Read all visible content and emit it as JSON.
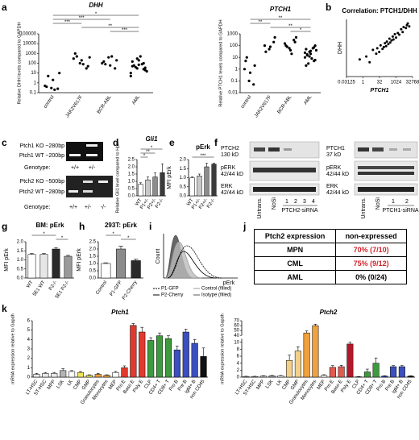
{
  "panel_letters": [
    "a",
    "b",
    "c",
    "d",
    "e",
    "f",
    "g",
    "h",
    "i",
    "j",
    "k"
  ],
  "chart_data": [
    {
      "type": "strip",
      "title": "DHH",
      "y_label": "Relative DHH levels compared to GAPDH",
      "categories": [
        "control",
        "JAK2V617F",
        "BCR-ABL",
        "AML"
      ],
      "values": [
        [
          0.5,
          0.3,
          0.25,
          0.4,
          2,
          10,
          5,
          0.2
        ],
        [
          300,
          100,
          30,
          1000,
          200,
          50,
          500,
          80,
          400
        ],
        [
          100,
          400,
          30,
          150,
          60,
          200,
          80,
          500
        ],
        [
          10,
          30,
          100,
          50,
          200,
          20,
          60,
          500,
          15,
          40,
          80,
          5,
          300,
          25,
          150,
          70,
          35
        ]
      ],
      "yscale": "log",
      "ylim": [
        0.1,
        100000
      ],
      "yticks": [
        0.1,
        1,
        10,
        100,
        1000,
        10000,
        100000
      ],
      "annotations": [
        "*",
        "***",
        "***",
        "**",
        "***"
      ],
      "color": "#000000"
    },
    {
      "type": "strip",
      "title": "PTCH1",
      "y_label": "Relative PTCH1 levels compared to GAPDH",
      "categories": [
        "control",
        "JAK2V617F",
        "BCR-ABL",
        "AML"
      ],
      "values": [
        [
          1,
          0.1,
          0.05,
          5,
          0.5,
          2,
          10
        ],
        [
          100,
          50,
          200,
          30,
          80,
          500
        ],
        [
          150,
          60,
          300,
          100,
          40,
          200,
          80,
          20,
          500
        ],
        [
          10,
          30,
          5,
          50,
          20,
          100,
          15,
          8,
          40,
          3,
          60,
          25,
          12,
          70,
          2,
          35,
          6,
          18
        ]
      ],
      "yscale": "log",
      "ylim": [
        0.01,
        1000
      ],
      "yticks": [
        0.01,
        0.1,
        1,
        10,
        100,
        1000
      ],
      "annotations": [
        "**",
        "**",
        "**",
        "*"
      ],
      "color": "#000000"
    },
    {
      "type": "scatter",
      "title": "Correlation: PTCH1/DHH",
      "x_label": "PTCH1",
      "y_label": "DHH",
      "x": [
        0.5,
        2,
        4,
        8,
        16,
        20,
        30,
        40,
        60,
        80,
        100,
        128,
        150,
        200,
        256,
        300,
        400,
        512,
        600,
        800,
        1024,
        1500,
        2048,
        3000,
        4096,
        5000,
        8192,
        10000,
        16384,
        12000
      ],
      "y": [
        2,
        4,
        1,
        20,
        8,
        30,
        12,
        60,
        25,
        40,
        100,
        50,
        150,
        80,
        300,
        120,
        200,
        500,
        250,
        900,
        400,
        1200,
        800,
        3000,
        1500,
        5000,
        4000,
        8000,
        6000,
        12000
      ],
      "xscale": "log2",
      "yscale": "log2",
      "xlim": [
        0.03125,
        32768
      ],
      "ylim": [
        0.03125,
        32768
      ],
      "xticks": [
        0.03125,
        1,
        32,
        1024,
        32768
      ],
      "color": "#000000"
    },
    {
      "type": "bar",
      "title": "Gli1",
      "y_label": "Relative Gli1 level compared to Hprt",
      "categories": [
        "WT",
        "P1+/-",
        "P2+/-",
        "P2-/-"
      ],
      "values": [
        0.8,
        1.1,
        1.3,
        1.6
      ],
      "errors": [
        0.1,
        0.2,
        0.3,
        0.6
      ],
      "colors": [
        "#ffffff",
        "#c8c8c8",
        "#8c8c8c",
        "#3a3a3a"
      ],
      "ylim": [
        0,
        2.5
      ],
      "yticks": [
        {
          "value": 0,
          "label": "0.0"
        },
        {
          "value": 0.5,
          "label": "0.5"
        },
        {
          "value": 1,
          "label": "1.0"
        },
        {
          "value": 1.5,
          "label": "1.5"
        },
        {
          "value": 2,
          "label": "2.0"
        },
        {
          "value": 2.5,
          "label": "2.5"
        }
      ],
      "annotations": [
        "*",
        "**",
        "*"
      ]
    },
    {
      "type": "bar",
      "title": "pErk",
      "y_label": "MFI pErk",
      "categories": [
        "WT",
        "P1+/-",
        "P2+/-",
        "P2-/-"
      ],
      "values": [
        1.0,
        1.1,
        1.6,
        1.75
      ],
      "errors": [
        0.05,
        0.1,
        0.2,
        0.05
      ],
      "colors": [
        "#ffffff",
        "#c8c8c8",
        "#8c8c8c",
        "#3a3a3a"
      ],
      "ylim": [
        0,
        2
      ],
      "yticks": [
        {
          "value": 0,
          "label": "0.0"
        },
        {
          "value": 0.5,
          "label": "0.5"
        },
        {
          "value": 1,
          "label": "1.0"
        },
        {
          "value": 1.5,
          "label": "1.5"
        },
        {
          "value": 2,
          "label": "2.0"
        }
      ],
      "annotations": [
        "***"
      ]
    },
    {
      "type": "bar",
      "title": "BM: pErk",
      "y_label": "MFI pErk",
      "categories": [
        "WT",
        "5E1 WT",
        "P2-/-",
        "5E1 P2-/-"
      ],
      "values": [
        1.3,
        1.3,
        1.6,
        1.2
      ],
      "errors": [
        0.05,
        0.05,
        0.08,
        0.05
      ],
      "colors": [
        "#ffffff",
        "#e6e6e6",
        "#2a2a2a",
        "#9a9a9a"
      ],
      "ylim": [
        0,
        2
      ],
      "yticks": [
        {
          "value": 0,
          "label": "0.0"
        },
        {
          "value": 0.5,
          "label": "0.5"
        },
        {
          "value": 1,
          "label": "1.0"
        },
        {
          "value": 1.5,
          "label": "1.5"
        },
        {
          "value": 2,
          "label": "2.0"
        }
      ],
      "annotations": [
        "*",
        "*"
      ]
    },
    {
      "type": "bar",
      "title": "293T: pErk",
      "y_label": "MFI pErk",
      "categories": [
        "Control",
        "P1-GFP",
        "P2-Cherry"
      ],
      "values": [
        1.0,
        2.0,
        1.2
      ],
      "errors": [
        0.05,
        0.2,
        0.1
      ],
      "colors": [
        "#ffffff",
        "#8c8c8c",
        "#2a2a2a"
      ],
      "ylim": [
        0,
        2.5
      ],
      "yticks": [
        {
          "value": 0,
          "label": "0.0"
        },
        {
          "value": 0.5,
          "label": "0.5"
        },
        {
          "value": 1,
          "label": "1.0"
        },
        {
          "value": 1.5,
          "label": "1.5"
        },
        {
          "value": 2,
          "label": "2.0"
        },
        {
          "value": 2.5,
          "label": "2.5"
        }
      ],
      "annotations": [
        "*",
        "*"
      ]
    },
    {
      "type": "bar",
      "title": "Ptch1",
      "y_label": "mRNA expression relative to Gapdh",
      "categories": [
        "LT-HSC",
        "ST-HSC",
        "MPP",
        "LSK",
        "LK",
        "CMP",
        "GMP",
        "Granulocytes",
        "Monocytes",
        "MEP",
        "Pro E",
        "Baso E",
        "Poly E",
        "CLP",
        "CD4+ T",
        "CD8+ T",
        "Pro B",
        "Pre B",
        "IgM+ B",
        "non CD45"
      ],
      "values": [
        0.3,
        0.4,
        0.4,
        0.7,
        0.6,
        0.5,
        0.2,
        0.3,
        0.2,
        0.5,
        1.0,
        5.5,
        4.8,
        3.9,
        4.4,
        4.1,
        2.9,
        4.8,
        3.6,
        2.2
      ],
      "errors": [
        0.1,
        0.1,
        0.1,
        0.2,
        0.1,
        0.1,
        0.05,
        0.1,
        0.05,
        0.1,
        0.2,
        0.2,
        0.5,
        0.3,
        0.3,
        0.3,
        0.4,
        0.3,
        0.4,
        0.9
      ],
      "colors": [
        "#e8e8e8",
        "#e8e8e8",
        "#e8e8e8",
        "#b4b4b4",
        "#ffffff",
        "#f2e35c",
        "#f2e35c",
        "#f0a03c",
        "#f0a03c",
        "#ffffff",
        "#e03a2e",
        "#e03a2e",
        "#e03a2e",
        "#3d9b3d",
        "#3d9b3d",
        "#3d9b3d",
        "#3b4fbf",
        "#3b4fbf",
        "#3b4fbf",
        "#111111"
      ],
      "ylim": [
        0,
        6
      ],
      "yticks": [
        0,
        1,
        2,
        3,
        4,
        5,
        6
      ]
    },
    {
      "type": "bar",
      "title": "Ptch2",
      "y_label": "mRNA expression relative to Gapdh",
      "categories": [
        "LT-HSC",
        "ST-HSC",
        "MPP",
        "LSK",
        "LK",
        "CMP",
        "GMP",
        "Granulocytes",
        "Monocytes",
        "MEP",
        "Pro E",
        "Baso E",
        "Poly E",
        "CLP",
        "CD4+ T",
        "CD8+ T",
        "Pro B",
        "Pre B",
        "IgM+ B",
        "non CD45"
      ],
      "values": [
        0.2,
        0.2,
        0.3,
        0.4,
        0.4,
        4.8,
        7.5,
        45,
        60,
        0.5,
        2.8,
        3,
        9.5,
        0.1,
        1.5,
        4,
        0.3,
        3,
        3,
        0.3
      ],
      "errors": [
        0.05,
        0.05,
        0.1,
        0.1,
        0.1,
        1.5,
        1.2,
        4,
        3,
        0.2,
        0.5,
        0.4,
        0.5,
        0.05,
        0.8,
        1.5,
        0.1,
        0.3,
        0.3,
        0.1
      ],
      "colors": [
        "#e8e8e8",
        "#e8e8e8",
        "#e8e8e8",
        "#b4b4b4",
        "#ffffff",
        "#f2d08a",
        "#f2d08a",
        "#f0a03c",
        "#f0a03c",
        "#ffffff",
        "#e05a50",
        "#e05a50",
        "#b3182a",
        "#3d9b3d",
        "#3d9b3d",
        "#3d9b3d",
        "#3b4fbf",
        "#3b4fbf",
        "#3b4fbf",
        "#111111"
      ],
      "ylim": [
        0,
        70
      ],
      "ybreak": [
        11,
        40
      ],
      "yticks": [
        0,
        2,
        4,
        6,
        8,
        10,
        40,
        50,
        60,
        70
      ]
    }
  ],
  "gels": [
    {
      "bands": [
        "Ptch1 KO ~280bp",
        "Ptch1 WT ~200bp"
      ],
      "genotype_label": "Genotype:",
      "genotypes": [
        "+/+",
        "+/-"
      ]
    },
    {
      "bands": [
        "Ptch2 KO ~500bp",
        "Ptch2 WT ~280bp"
      ],
      "genotype_label": "Genotype:",
      "genotypes": [
        "+/+",
        "+/-",
        "-/-"
      ]
    }
  ],
  "blots": [
    {
      "rows": [
        [
          "PTCH2",
          "130 kD"
        ],
        [
          "pERK",
          "42/44 kD"
        ],
        [
          "ERK",
          "42/44 kD"
        ]
      ],
      "lanes": [
        "Untrans.",
        "NoSi",
        "1",
        "2",
        "3",
        "4"
      ],
      "sirna": "PTCH2-siRNA"
    },
    {
      "rows": [
        [
          "PTCH1",
          "37 kD"
        ],
        [
          "pERK",
          "42/44 kD"
        ],
        [
          "ERK",
          "42/44 kD"
        ]
      ],
      "lanes": [
        "Untrans.",
        "NoSi",
        "1",
        "2"
      ],
      "sirna": "PTCH1-siRNA"
    }
  ],
  "flow": {
    "y_label": "Count",
    "x_label": "pErk",
    "legend": [
      "P1-GFP",
      "Control (filled)",
      "P2-Cherry",
      "Isotype (filled)"
    ]
  },
  "table": {
    "header": [
      "Ptch2 expression",
      "non-expressed"
    ],
    "rows": [
      [
        "MPN",
        "70% (7/10)"
      ],
      [
        "CML",
        "75% (9/12)"
      ],
      [
        "AML",
        "0% (0/24)"
      ]
    ]
  }
}
